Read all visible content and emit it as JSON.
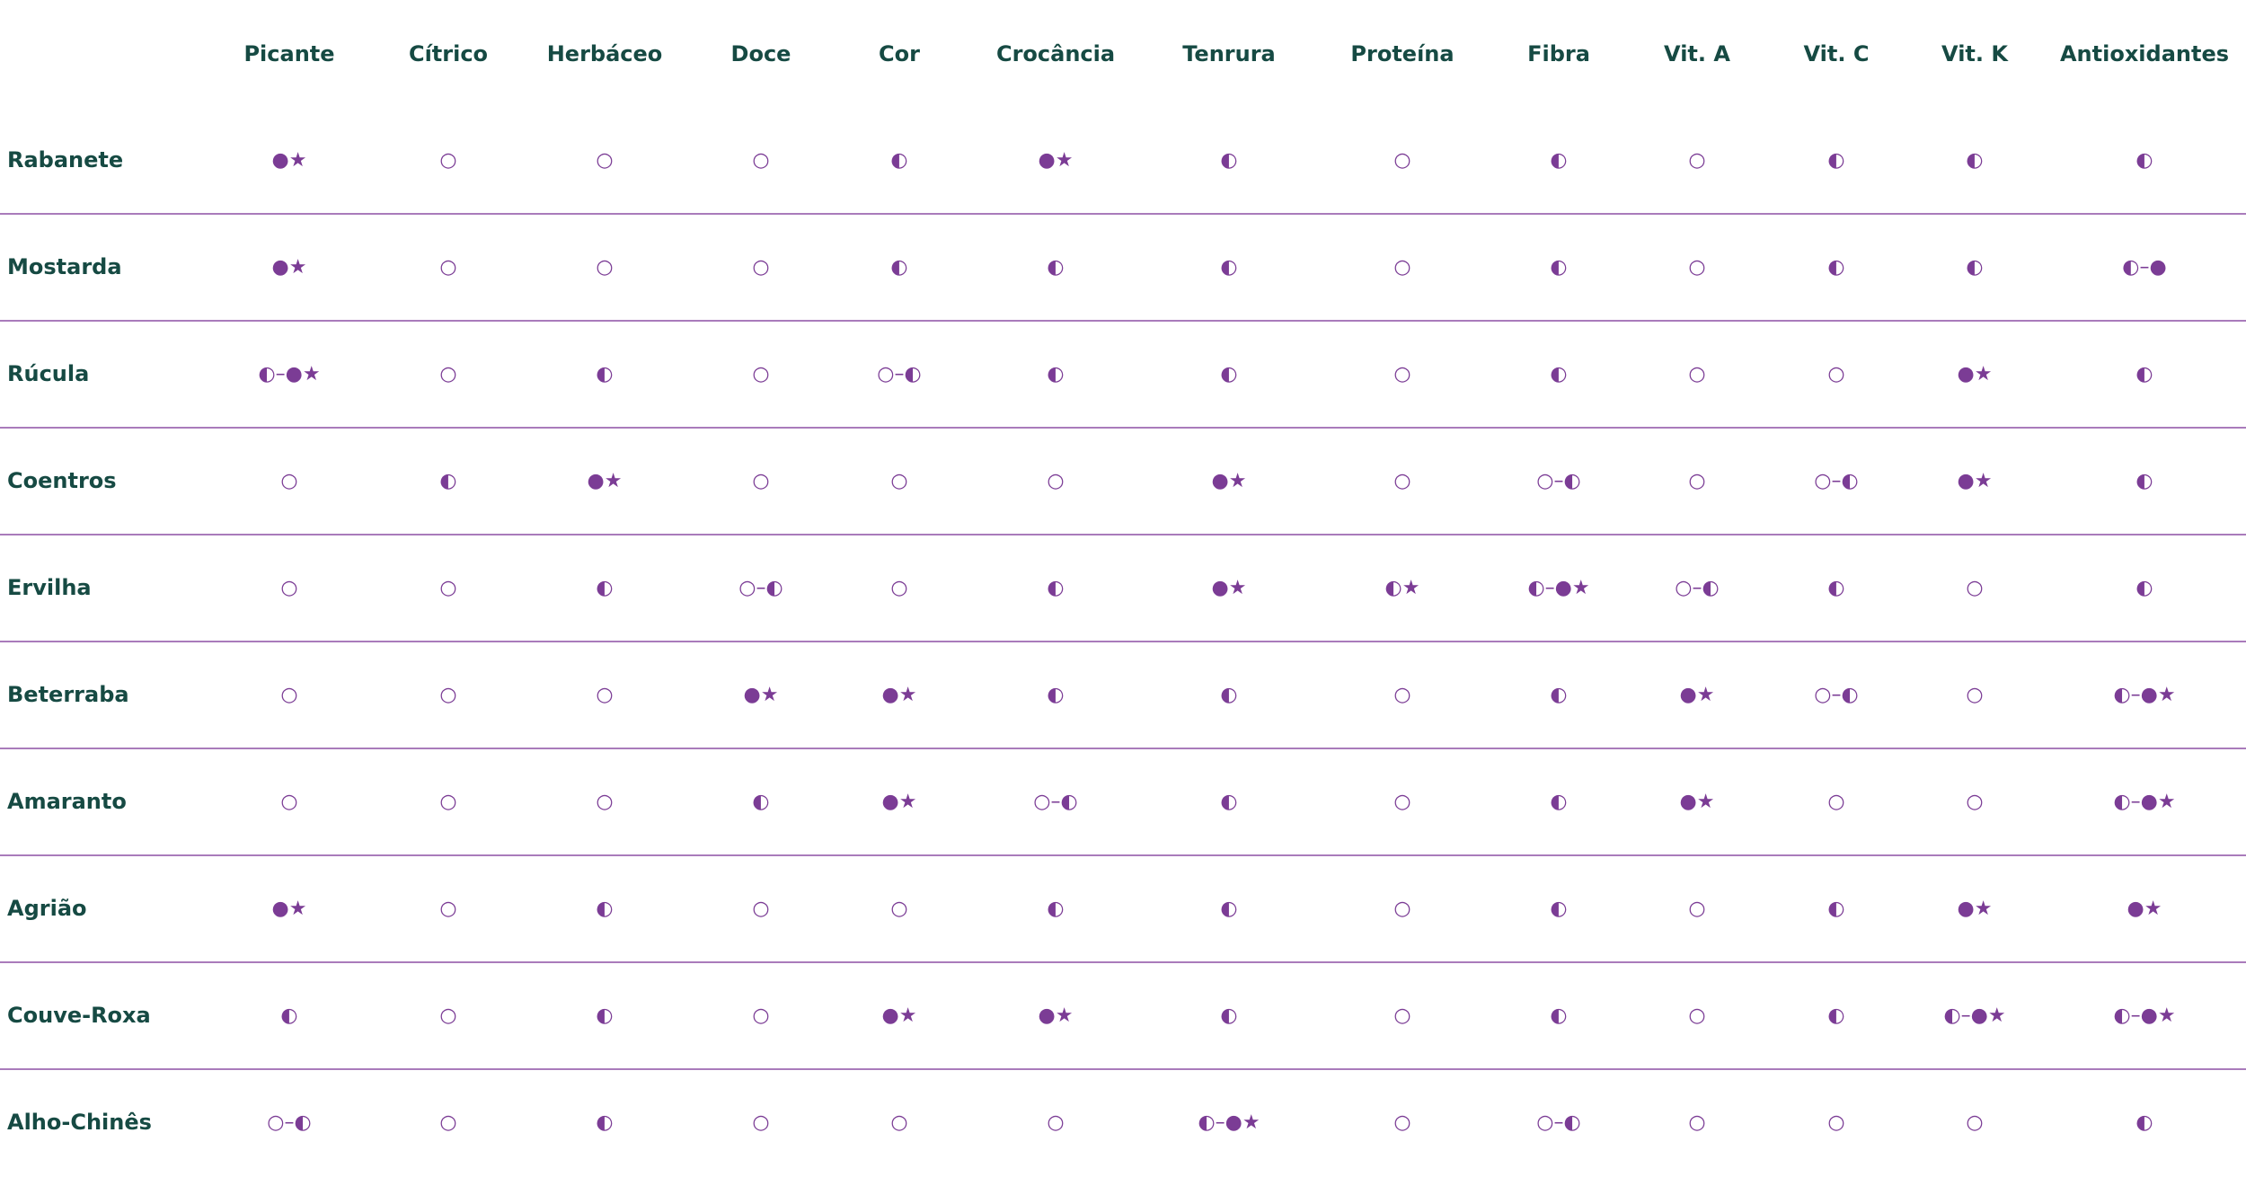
{
  "columns": [
    "Picante",
    "Cítrico",
    "Herbáceo",
    "Doce",
    "Cor",
    "Crocância",
    "Tenrura",
    "Proteína",
    "Fibra",
    "Vit. A",
    "Vit. C",
    "Vit. K",
    "Antioxidantes"
  ],
  "rows": [
    {
      "name": "Rabanete",
      "cells": [
        "●★",
        "○",
        "○",
        "○",
        "◐",
        "●★",
        "◐",
        "○",
        "◐",
        "○",
        "◐",
        "◐",
        "◐"
      ]
    },
    {
      "name": "Mostarda",
      "cells": [
        "●★",
        "○",
        "○",
        "○",
        "◐",
        "◐",
        "◐",
        "○",
        "◐",
        "○",
        "◐",
        "◐",
        "◐–●"
      ]
    },
    {
      "name": "Rúcula",
      "cells": [
        "◐–●★",
        "○",
        "◐",
        "○",
        "○–◐",
        "◐",
        "◐",
        "○",
        "◐",
        "○",
        "○",
        "●★",
        "◐"
      ]
    },
    {
      "name": "Coentros",
      "cells": [
        "○",
        "◐",
        "●★",
        "○",
        "○",
        "○",
        "●★",
        "○",
        "○–◐",
        "○",
        "○–◐",
        "●★",
        "◐"
      ]
    },
    {
      "name": "Ervilha",
      "cells": [
        "○",
        "○",
        "◐",
        "○–◐",
        "○",
        "◐",
        "●★",
        "◐★",
        "◐–●★",
        "○–◐",
        "◐",
        "○",
        "◐"
      ]
    },
    {
      "name": "Beterraba",
      "cells": [
        "○",
        "○",
        "○",
        "●★",
        "●★",
        "◐",
        "◐",
        "○",
        "◐",
        "●★",
        "○–◐",
        "○",
        "◐–●★"
      ]
    },
    {
      "name": "Amaranto",
      "cells": [
        "○",
        "○",
        "○",
        "◐",
        "●★",
        "○–◐",
        "◐",
        "○",
        "◐",
        "●★",
        "○",
        "○",
        "◐–●★"
      ]
    },
    {
      "name": "Agrião",
      "cells": [
        "●★",
        "○",
        "◐",
        "○",
        "○",
        "◐",
        "◐",
        "○",
        "◐",
        "○",
        "◐",
        "●★",
        "●★"
      ]
    },
    {
      "name": "Couve-Roxa",
      "cells": [
        "◐",
        "○",
        "◐",
        "○",
        "●★",
        "●★",
        "◐",
        "○",
        "◐",
        "○",
        "◐",
        "◐–●★",
        "◐–●★"
      ]
    },
    {
      "name": "Alho-Chinês",
      "cells": [
        "○–◐",
        "○",
        "◐",
        "○",
        "○",
        "○",
        "◐–●★",
        "○",
        "○–◐",
        "○",
        "○",
        "○",
        "◐"
      ]
    }
  ],
  "colors": {
    "header_text": "#164a43",
    "symbol": "#7b3c95",
    "divider": "#a97bbb"
  }
}
